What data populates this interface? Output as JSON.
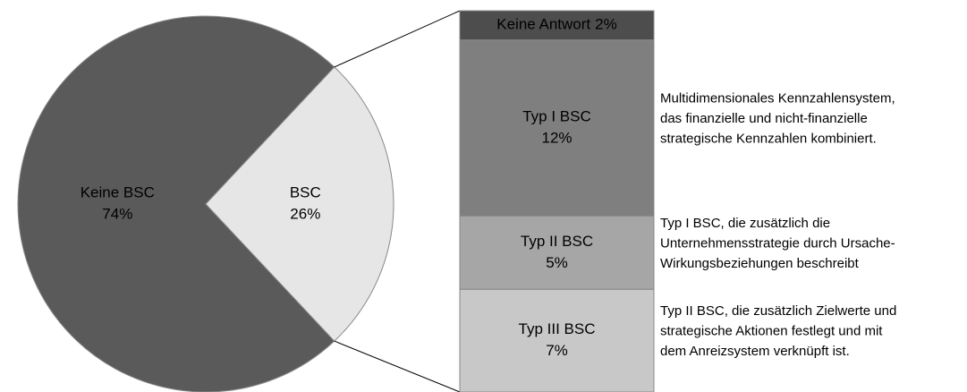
{
  "chart_data": {
    "type": "pie",
    "categories": [
      "Keine BSC",
      "BSC"
    ],
    "values": [
      74,
      26
    ],
    "value_labels": [
      "74%",
      "26%"
    ],
    "colors": [
      "#5a5a5a",
      "#e6e6e6"
    ],
    "breakdown": {
      "type": "stacked-bar",
      "categories": [
        "Keine Antwort",
        "Typ I BSC",
        "Typ II BSC",
        "Typ III BSC"
      ],
      "values": [
        2,
        12,
        5,
        7
      ],
      "value_labels": [
        "2%",
        "12%",
        "5%",
        "7%"
      ],
      "colors": [
        "#4d4d4d",
        "#7f7f7f",
        "#a6a6a6",
        "#c8c8c8"
      ],
      "descriptions": [
        null,
        [
          "Multidimensionales Kennzahlensystem,",
          "das finanzielle und nicht-finanzielle",
          "strategische Kennzahlen kombiniert."
        ],
        [
          "Typ I BSC, die zusätzlich die",
          "Unternehmensstrategie durch Ursache-",
          "Wirkungsbeziehungen beschreibt"
        ],
        [
          "Typ II BSC, die zusätzlich Zielwerte und",
          "strategische Aktionen festlegt und mit",
          "dem Anreizsystem verknüpft ist."
        ]
      ]
    }
  }
}
